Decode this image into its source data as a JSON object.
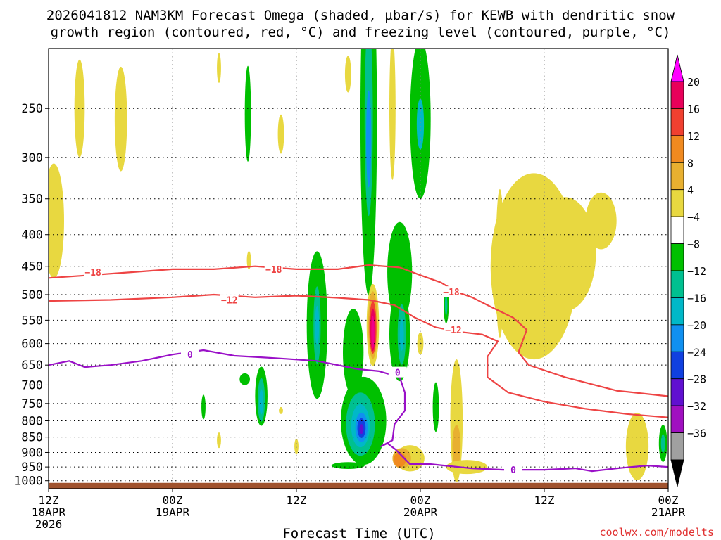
{
  "chart_data": {
    "type": "heatmap",
    "title_line1": "2026041812 NAM3KM Forecast Omega (shaded, µbar/s) for KEWB with dendritic snow",
    "title_line2": "growth region (contoured, red, °C) and freezing level (contoured, purple, °C)",
    "xlabel": "Forecast Time (UTC)",
    "credit": "coolwx.com/modelts",
    "x_axis": {
      "range_hours": [
        0,
        60
      ],
      "ticks": [
        {
          "h": 0,
          "label": "12Z",
          "sub1": "18APR",
          "sub2": "2026"
        },
        {
          "h": 12,
          "label": "00Z",
          "sub1": "19APR",
          "sub2": ""
        },
        {
          "h": 24,
          "label": "12Z",
          "sub1": "",
          "sub2": ""
        },
        {
          "h": 36,
          "label": "00Z",
          "sub1": "20APR",
          "sub2": ""
        },
        {
          "h": 48,
          "label": "12Z",
          "sub1": "",
          "sub2": ""
        },
        {
          "h": 60,
          "label": "00Z",
          "sub1": "21APR",
          "sub2": ""
        }
      ]
    },
    "y_axis": {
      "scale": "log-pressure",
      "range_hpa": [
        200,
        1030
      ],
      "ticks": [
        250,
        300,
        350,
        400,
        450,
        500,
        550,
        600,
        650,
        700,
        750,
        800,
        850,
        900,
        950,
        1000
      ]
    },
    "colorbar": {
      "labels": [
        "20",
        "16",
        "12",
        "8",
        "4",
        "−4",
        "−8",
        "−12",
        "−16",
        "−20",
        "−24",
        "−28",
        "−32",
        "−36"
      ],
      "colors": [
        "#f0f",
        "#e8005a",
        "#f04030",
        "#f08a20",
        "#e8b030",
        "#e8d840",
        "#ffffff",
        "#00c000",
        "#00c090",
        "#00b8c8",
        "#1090f0",
        "#1040e0",
        "#6010d0",
        "#a010c0",
        "#a0a0a0",
        "#000000"
      ]
    },
    "omega_colors": {
      "w4": "#e8d840",
      "w8": "#e8b030",
      "w12": "#f08a20",
      "w16": "#f04030",
      "w20": "#e8005a",
      "w24": "#f0008a",
      "c4": "#00c000",
      "c8": "#00c090",
      "c12": "#00b8c8",
      "c16": "#1090f0",
      "c20": "#1040e0",
      "c24": "#6010d0"
    },
    "omega_blobs": [
      {
        "h": 0.5,
        "p": 380,
        "rh": 1.0,
        "rp": 80,
        "level": "w4"
      },
      {
        "h": 3.0,
        "p": 250,
        "rh": 0.5,
        "rp": 45,
        "level": "w4"
      },
      {
        "h": 7.0,
        "p": 260,
        "rh": 0.6,
        "rp": 50,
        "level": "w4"
      },
      {
        "h": 16.5,
        "p": 215,
        "rh": 0.2,
        "rp": 12,
        "level": "w4"
      },
      {
        "h": 19.3,
        "p": 255,
        "rh": 0.3,
        "rp": 45,
        "level": "c4"
      },
      {
        "h": 22.5,
        "p": 275,
        "rh": 0.3,
        "rp": 20,
        "level": "w4"
      },
      {
        "h": 19.4,
        "p": 440,
        "rh": 0.2,
        "rp": 15,
        "level": "w4"
      },
      {
        "h": 29.0,
        "p": 220,
        "rh": 0.3,
        "rp": 15,
        "level": "w4"
      },
      {
        "h": 31.0,
        "p": 260,
        "rh": 0.8,
        "rp": 150,
        "level": "c4"
      },
      {
        "h": 31.0,
        "p": 260,
        "rh": 0.4,
        "rp": 90,
        "level": "c8"
      },
      {
        "h": 31.0,
        "p": 280,
        "rh": 0.25,
        "rp": 50,
        "level": "c16"
      },
      {
        "h": 33.3,
        "p": 250,
        "rh": 0.3,
        "rp": 65,
        "level": "w4"
      },
      {
        "h": 36.0,
        "p": 260,
        "rh": 1.0,
        "rp": 75,
        "level": "c4"
      },
      {
        "h": 36.0,
        "p": 265,
        "rh": 0.35,
        "rp": 25,
        "level": "c12"
      },
      {
        "h": 34.0,
        "p": 460,
        "rh": 1.2,
        "rp": 85,
        "level": "c4"
      },
      {
        "h": 43.7,
        "p": 445,
        "rh": 0.4,
        "rp": 120,
        "level": "w4"
      },
      {
        "h": 47.0,
        "p": 450,
        "rh": 4.2,
        "rp": 150,
        "level": "w4"
      },
      {
        "h": 50.0,
        "p": 430,
        "rh": 3.0,
        "rp": 90,
        "level": "w4"
      },
      {
        "h": 53.5,
        "p": 380,
        "rh": 1.5,
        "rp": 40,
        "level": "w4"
      },
      {
        "h": 26.0,
        "p": 560,
        "rh": 1.0,
        "rp": 150,
        "level": "c4"
      },
      {
        "h": 26.0,
        "p": 560,
        "rh": 0.35,
        "rp": 80,
        "level": "c8"
      },
      {
        "h": 26.0,
        "p": 560,
        "rh": 0.2,
        "rp": 40,
        "level": "c12"
      },
      {
        "h": 29.5,
        "p": 620,
        "rh": 1.0,
        "rp": 100,
        "level": "c4"
      },
      {
        "h": 34.0,
        "p": 580,
        "rh": 1.0,
        "rp": 100,
        "level": "c4"
      },
      {
        "h": 34.2,
        "p": 580,
        "rh": 0.4,
        "rp": 65,
        "level": "c8"
      },
      {
        "h": 34.2,
        "p": 580,
        "rh": 0.2,
        "rp": 35,
        "level": "c12"
      },
      {
        "h": 31.4,
        "p": 560,
        "rh": 0.6,
        "rp": 85,
        "level": "w4"
      },
      {
        "h": 31.4,
        "p": 560,
        "rh": 0.45,
        "rp": 70,
        "level": "w8"
      },
      {
        "h": 31.4,
        "p": 565,
        "rh": 0.35,
        "rp": 55,
        "level": "w16"
      },
      {
        "h": 31.4,
        "p": 570,
        "rh": 0.25,
        "rp": 45,
        "level": "w20"
      },
      {
        "h": 31.4,
        "p": 575,
        "rh": 0.15,
        "rp": 35,
        "level": "w24"
      },
      {
        "h": 38.5,
        "p": 520,
        "rh": 0.25,
        "rp": 35,
        "level": "c4"
      },
      {
        "h": 38.5,
        "p": 520,
        "rh": 0.12,
        "rp": 20,
        "level": "c8"
      },
      {
        "h": 36.0,
        "p": 600,
        "rh": 0.3,
        "rp": 25,
        "level": "w4"
      },
      {
        "h": 30.5,
        "p": 800,
        "rh": 2.2,
        "rp": 130,
        "level": "c4"
      },
      {
        "h": 30.2,
        "p": 810,
        "rh": 1.4,
        "rp": 95,
        "level": "c8"
      },
      {
        "h": 30.2,
        "p": 815,
        "rh": 0.9,
        "rp": 65,
        "level": "c12"
      },
      {
        "h": 30.3,
        "p": 820,
        "rh": 0.6,
        "rp": 45,
        "level": "c16"
      },
      {
        "h": 30.3,
        "p": 822,
        "rh": 0.4,
        "rp": 30,
        "level": "c20"
      },
      {
        "h": 30.3,
        "p": 825,
        "rh": 0.2,
        "rp": 15,
        "level": "c24"
      },
      {
        "h": 20.6,
        "p": 730,
        "rh": 0.6,
        "rp": 80,
        "level": "c4"
      },
      {
        "h": 20.6,
        "p": 740,
        "rh": 0.35,
        "rp": 60,
        "level": "c8"
      },
      {
        "h": 20.6,
        "p": 745,
        "rh": 0.2,
        "rp": 35,
        "level": "c12"
      },
      {
        "h": 19.0,
        "p": 685,
        "rh": 0.5,
        "rp": 15,
        "level": "c4"
      },
      {
        "h": 15.0,
        "p": 760,
        "rh": 0.2,
        "rp": 35,
        "level": "c4"
      },
      {
        "h": 16.5,
        "p": 860,
        "rh": 0.2,
        "rp": 25,
        "level": "w4"
      },
      {
        "h": 22.5,
        "p": 770,
        "rh": 0.2,
        "rp": 10,
        "level": "w4"
      },
      {
        "h": 24.0,
        "p": 880,
        "rh": 0.2,
        "rp": 25,
        "level": "w4"
      },
      {
        "h": 35.0,
        "p": 920,
        "rh": 1.4,
        "rp": 45,
        "level": "w4"
      },
      {
        "h": 34.2,
        "p": 920,
        "rh": 0.9,
        "rp": 35,
        "level": "w8"
      },
      {
        "h": 34.0,
        "p": 925,
        "rh": 0.6,
        "rp": 25,
        "level": "w12"
      },
      {
        "h": 37.5,
        "p": 760,
        "rh": 0.3,
        "rp": 70,
        "level": "c4"
      },
      {
        "h": 39.5,
        "p": 800,
        "rh": 0.6,
        "rp": 180,
        "level": "w4"
      },
      {
        "h": 39.5,
        "p": 880,
        "rh": 0.4,
        "rp": 70,
        "level": "w8"
      },
      {
        "h": 40.5,
        "p": 950,
        "rh": 2.0,
        "rp": 25,
        "level": "w4"
      },
      {
        "h": 29.0,
        "p": 945,
        "rh": 1.6,
        "rp": 12,
        "level": "c4"
      },
      {
        "h": 57.0,
        "p": 880,
        "rh": 1.1,
        "rp": 110,
        "level": "w4"
      },
      {
        "h": 59.5,
        "p": 870,
        "rh": 0.4,
        "rp": 60,
        "level": "c4"
      },
      {
        "h": 59.5,
        "p": 870,
        "rh": 0.2,
        "rp": 30,
        "level": "c8"
      }
    ],
    "isotherms": [
      {
        "name": "-18",
        "color": "#ee4444",
        "label": "−18",
        "label_pts": [
          [
            4.3,
            460
          ],
          [
            21.8,
            455
          ],
          [
            39.0,
            495
          ]
        ],
        "points": [
          [
            0,
            470
          ],
          [
            4,
            465
          ],
          [
            8,
            460
          ],
          [
            12,
            455
          ],
          [
            16,
            455
          ],
          [
            20,
            450
          ],
          [
            24,
            455
          ],
          [
            28,
            455
          ],
          [
            31,
            448
          ],
          [
            34,
            452
          ],
          [
            36,
            465
          ],
          [
            38,
            478
          ],
          [
            39.5,
            495
          ],
          [
            41,
            505
          ],
          [
            43,
            525
          ],
          [
            45,
            545
          ],
          [
            46.3,
            570
          ],
          [
            45.5,
            620
          ],
          [
            46.5,
            650
          ],
          [
            50,
            680
          ],
          [
            55,
            715
          ],
          [
            60,
            730
          ]
        ]
      },
      {
        "name": "-12",
        "color": "#ee4444",
        "label": "−12",
        "label_pts": [
          [
            17.5,
            510
          ],
          [
            39.2,
            570
          ]
        ],
        "points": [
          [
            0,
            512
          ],
          [
            6,
            510
          ],
          [
            12,
            505
          ],
          [
            16,
            500
          ],
          [
            20,
            505
          ],
          [
            24,
            502
          ],
          [
            28,
            506
          ],
          [
            31,
            510
          ],
          [
            33.5,
            520
          ],
          [
            35.5,
            545
          ],
          [
            37.5,
            565
          ],
          [
            40,
            575
          ],
          [
            42,
            580
          ],
          [
            43.5,
            595
          ],
          [
            42.5,
            630
          ],
          [
            42.5,
            680
          ],
          [
            44.5,
            720
          ],
          [
            48,
            745
          ],
          [
            52,
            765
          ],
          [
            56,
            780
          ],
          [
            60,
            790
          ]
        ]
      },
      {
        "name": "0",
        "color": "#9a10c8",
        "label": "0",
        "label_pts": [
          [
            13.7,
            625
          ],
          [
            33.8,
            668
          ],
          [
            45.0,
            960
          ]
        ],
        "points": [
          [
            0,
            650
          ],
          [
            2,
            640
          ],
          [
            3.5,
            655
          ],
          [
            6,
            650
          ],
          [
            9,
            640
          ],
          [
            12,
            625
          ],
          [
            15,
            615
          ],
          [
            18,
            628
          ],
          [
            21,
            632
          ],
          [
            23,
            635
          ],
          [
            26,
            640
          ],
          [
            28,
            650
          ],
          [
            30,
            660
          ],
          [
            32,
            665
          ],
          [
            34.0,
            680
          ],
          [
            34.5,
            720
          ],
          [
            34.5,
            770
          ],
          [
            33.5,
            810
          ],
          [
            33.3,
            860
          ],
          [
            32.2,
            880
          ],
          [
            32.8,
            870
          ],
          [
            33.6,
            890
          ],
          [
            35,
            940
          ],
          [
            37,
            940
          ],
          [
            41,
            955
          ],
          [
            44,
            960
          ],
          [
            48,
            960
          ],
          [
            51,
            955
          ],
          [
            52.6,
            965
          ],
          [
            55,
            955
          ],
          [
            58,
            945
          ],
          [
            60,
            950
          ]
        ]
      }
    ],
    "terrain": {
      "p_top": 1008,
      "p_bottom": 1030,
      "color": "#a0522d"
    }
  }
}
